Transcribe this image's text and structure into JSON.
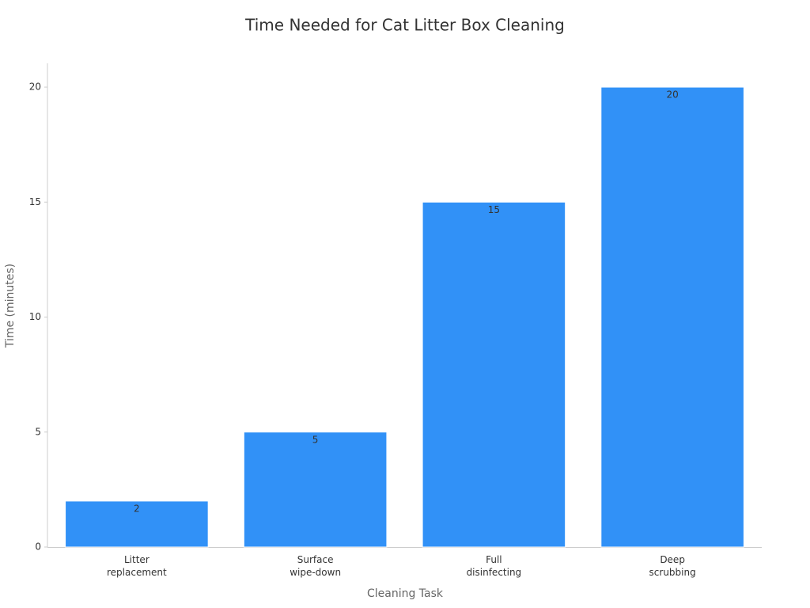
{
  "chart_data": {
    "type": "bar",
    "title": "Time Needed for Cat Litter Box Cleaning",
    "x_label": "Cleaning Task",
    "y_label": "Time (minutes)",
    "categories": [
      "Litter replacement",
      "Surface wipe-down",
      "Full disinfecting",
      "Deep scrubbing"
    ],
    "values": [
      2,
      5,
      15,
      20
    ],
    "color": "#3191f7",
    "ylim": [
      0,
      21
    ],
    "yticks": [
      0,
      5,
      10,
      15,
      20
    ],
    "grid": false,
    "value_labels_shown": true
  }
}
